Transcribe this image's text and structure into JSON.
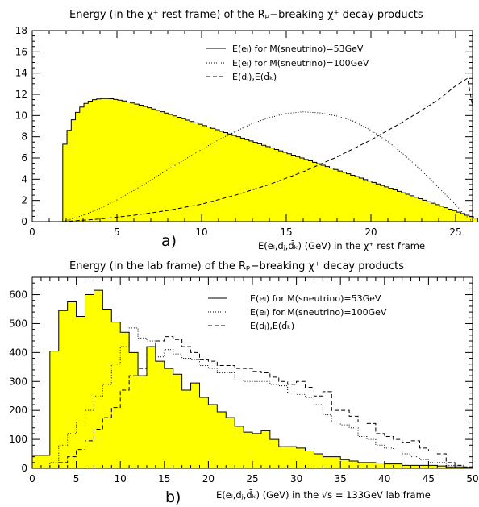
{
  "chart_data": [
    {
      "type": "area",
      "panel_label": "a)",
      "title": "Energy (in the χ⁺ rest frame) of the Rₚ−breaking χ⁺ decay products",
      "xlabel": "E(eₗ,dⱼ,d̄ₖ) (GeV) in the χ⁺ rest frame",
      "ylabel": "",
      "xlim": [
        0,
        26
      ],
      "ylim": [
        0,
        18
      ],
      "x_ticks": [
        "0",
        "5",
        "10",
        "15",
        "20",
        "25"
      ],
      "y_ticks": [
        "0",
        "2",
        "4",
        "6",
        "8",
        "10",
        "12",
        "14",
        "16",
        "18"
      ],
      "legend": {
        "placement": "top-right",
        "entries": [
          "E(eₗ) for M(sneutrino)=53GeV",
          "E(eₗ) for M(sneutrino)=100GeV",
          "E(dⱼ),E(d̄ₖ)"
        ]
      },
      "series": [
        {
          "name": "E(eₗ) for M(sneutrino)=53GeV",
          "style": "solid-filled",
          "fill": "#ffff00",
          "bin_edges_start": 1.8,
          "bin_width": 0.25,
          "values": [
            7.3,
            8.6,
            9.6,
            10.3,
            10.8,
            11.15,
            11.35,
            11.5,
            11.56,
            11.6,
            11.6,
            11.58,
            11.52,
            11.45,
            11.37,
            11.28,
            11.18,
            11.08,
            10.97,
            10.86,
            10.74,
            10.61,
            10.49,
            10.36,
            10.23,
            10.1,
            9.97,
            9.84,
            9.7,
            9.57,
            9.44,
            9.31,
            9.18,
            9.05,
            8.92,
            8.79,
            8.66,
            8.52,
            8.39,
            8.26,
            8.13,
            8.0,
            7.87,
            7.73,
            7.6,
            7.47,
            7.34,
            7.2,
            7.07,
            6.94,
            6.8,
            6.67,
            6.54,
            6.4,
            6.27,
            6.13,
            6.0,
            5.86,
            5.73,
            5.59,
            5.46,
            5.32,
            5.19,
            5.05,
            4.92,
            4.78,
            4.65,
            4.51,
            4.37,
            4.24,
            4.1,
            3.96,
            3.83,
            3.69,
            3.55,
            3.41,
            3.28,
            3.14,
            3.0,
            2.86,
            2.72,
            2.58,
            2.44,
            2.3,
            2.16,
            2.02,
            1.88,
            1.74,
            1.6,
            1.46,
            1.32,
            1.18,
            1.04,
            0.9,
            0.76,
            0.61,
            0.47,
            0.33
          ]
        },
        {
          "name": "E(eₗ) for M(sneutrino)=100GeV",
          "style": "dotted",
          "x": [
            1.8,
            3,
            4,
            5,
            6,
            7,
            8,
            9,
            10,
            11,
            12,
            13,
            14,
            15,
            16,
            17,
            18,
            19,
            20,
            21,
            22,
            23,
            24,
            25,
            25.5,
            26
          ],
          "y": [
            0.0,
            0.6,
            1.25,
            2.05,
            2.95,
            3.9,
            4.9,
            5.85,
            6.8,
            7.7,
            8.5,
            9.25,
            9.8,
            10.2,
            10.35,
            10.25,
            9.95,
            9.45,
            8.6,
            7.55,
            6.25,
            4.8,
            3.2,
            1.6,
            0.7,
            0.0
          ]
        },
        {
          "name": "E(dⱼ),E(d̄ₖ)",
          "style": "dashed",
          "x": [
            1.8,
            4,
            6,
            8,
            10,
            12,
            14,
            16,
            18,
            20,
            22,
            24,
            25,
            25.7,
            26
          ],
          "y": [
            0.0,
            0.25,
            0.6,
            1.05,
            1.65,
            2.5,
            3.5,
            4.7,
            6.1,
            7.7,
            9.5,
            11.5,
            12.8,
            13.5,
            10.9
          ]
        }
      ]
    },
    {
      "type": "bar",
      "panel_label": "b)",
      "title": "Energy (in the lab frame) of the Rₚ−breaking χ⁺ decay products",
      "xlabel": "E(eₗ,dⱼ,d̄ₖ) (GeV) in the √s = 133GeV lab frame",
      "ylabel": "",
      "xlim": [
        0,
        50
      ],
      "ylim": [
        0,
        660
      ],
      "x_ticks": [
        "0",
        "5",
        "10",
        "15",
        "20",
        "25",
        "30",
        "35",
        "40",
        "45",
        "50"
      ],
      "y_ticks": [
        "0",
        "100",
        "200",
        "300",
        "400",
        "500",
        "600"
      ],
      "bin_width": 1,
      "legend": {
        "placement": "top-right",
        "entries": [
          "E(eₗ) for M(sneutrino)=53GeV",
          "E(eₗ) for M(sneutrino)=100GeV",
          "E(dⱼ),E(d̄ₖ)"
        ]
      },
      "series": [
        {
          "name": "E(eₗ) for M(sneutrino)=53GeV",
          "style": "solid-filled",
          "fill": "#ffff00",
          "values": [
            45,
            45,
            405,
            545,
            575,
            525,
            600,
            615,
            550,
            505,
            470,
            400,
            320,
            420,
            370,
            345,
            325,
            270,
            295,
            245,
            220,
            195,
            175,
            145,
            125,
            120,
            130,
            100,
            75,
            75,
            70,
            60,
            50,
            40,
            40,
            30,
            25,
            20,
            20,
            18,
            15,
            15,
            10,
            10,
            10,
            10,
            8,
            5,
            5,
            3
          ]
        },
        {
          "name": "E(eₗ) for M(sneutrino)=100GeV",
          "style": "dotted",
          "values": [
            0,
            0,
            20,
            80,
            120,
            160,
            200,
            250,
            290,
            360,
            420,
            485,
            450,
            440,
            385,
            410,
            395,
            380,
            375,
            355,
            345,
            330,
            330,
            305,
            300,
            300,
            300,
            290,
            285,
            260,
            255,
            245,
            220,
            185,
            160,
            150,
            140,
            110,
            100,
            80,
            70,
            60,
            50,
            40,
            30,
            20,
            20,
            10,
            10,
            5
          ]
        },
        {
          "name": "E(dⱼ),E(d̄ₖ)",
          "style": "dashed",
          "values": [
            0,
            0,
            0,
            20,
            40,
            65,
            95,
            135,
            175,
            210,
            270,
            320,
            345,
            420,
            440,
            455,
            445,
            420,
            400,
            375,
            370,
            355,
            355,
            345,
            345,
            335,
            330,
            315,
            300,
            290,
            300,
            280,
            250,
            265,
            200,
            200,
            180,
            160,
            155,
            120,
            110,
            100,
            90,
            95,
            70,
            60,
            50,
            20,
            10,
            5
          ]
        }
      ]
    }
  ]
}
